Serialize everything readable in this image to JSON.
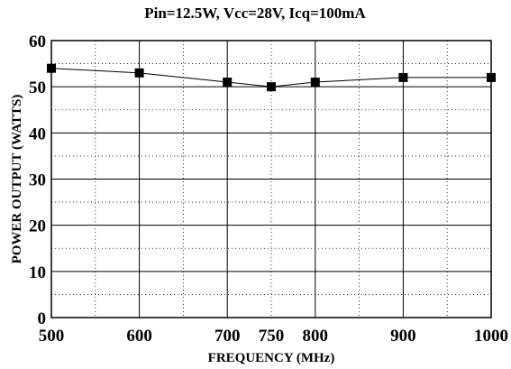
{
  "chart_data": {
    "type": "line",
    "title": "Pin=12.5W, Vcc=28V, Icq=100mA",
    "xlabel": "FREQUENCY (MHz)",
    "ylabel": "POWER OUTPUT (WATTS)",
    "x_ticks": [
      "500",
      "600",
      "700",
      "800",
      "900",
      "1000"
    ],
    "x_tick_values": [
      500,
      600,
      700,
      800,
      900,
      1000
    ],
    "x_tick_extra": {
      "label": "750",
      "value": 750
    },
    "y_ticks": [
      "0",
      "10",
      "20",
      "30",
      "40",
      "50",
      "60"
    ],
    "y_tick_values": [
      0,
      10,
      20,
      30,
      40,
      50,
      60
    ],
    "xlim": [
      500,
      1000
    ],
    "ylim": [
      0,
      60
    ],
    "grid": true,
    "legend": "none",
    "series": [
      {
        "x": [
          500,
          600,
          700,
          750,
          800,
          900,
          1000
        ],
        "y": [
          54,
          53,
          51,
          50,
          51,
          52,
          52
        ],
        "marker": "square",
        "color": "#000000"
      }
    ]
  }
}
